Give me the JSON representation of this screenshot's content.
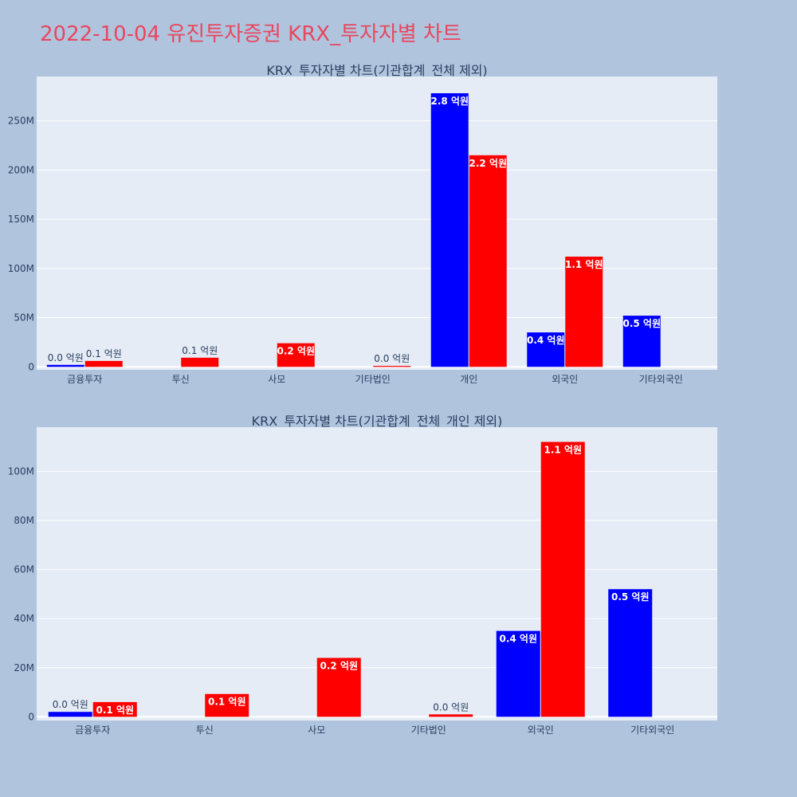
{
  "page": {
    "title": "2022-10-04 유진투자증권 KRX_투자자별 차트"
  },
  "colors": {
    "background": "#b0c4de",
    "plot_background": "#e5ecf6",
    "title": "#e8475f",
    "series_buy": "#0000ff",
    "series_sell": "#ff0000"
  },
  "chart_data": [
    {
      "type": "bar",
      "title": "KRX_투자자별 차트(기관합계_전체 제외)",
      "categories": [
        "금융투자",
        "투신",
        "사모",
        "기타법인",
        "개인",
        "외국인",
        "기타외국인"
      ],
      "series": [
        {
          "color": "#0000ff",
          "values": [
            2000000,
            0,
            0,
            0,
            278000000,
            35000000,
            52000000
          ],
          "labels": [
            "0.0 억원",
            "",
            "",
            "",
            "2.8 억원",
            "0.4 억원",
            "0.5 억원"
          ]
        },
        {
          "color": "#ff0000",
          "values": [
            6000000,
            9300000,
            24000000,
            1000000,
            215000000,
            112000000,
            0
          ],
          "labels": [
            "0.1 억원",
            "0.1 억원",
            "0.2 억원",
            "0.0 억원",
            "2.2 억원",
            "1.1 억원",
            ""
          ]
        }
      ],
      "yticks": [
        0,
        50000000,
        100000000,
        150000000,
        200000000,
        250000000
      ],
      "yticklabels": [
        "0",
        "50M",
        "100M",
        "150M",
        "200M",
        "250M"
      ],
      "ylim": [
        -3000000,
        295000000
      ],
      "grid": true,
      "legend": "none"
    },
    {
      "type": "bar",
      "title": "KRX_투자자별 차트(기관합계_전체_개인 제외)",
      "categories": [
        "금융투자",
        "투신",
        "사모",
        "기타법인",
        "외국인",
        "기타외국인"
      ],
      "series": [
        {
          "color": "#0000ff",
          "values": [
            2000000,
            0,
            0,
            0,
            35000000,
            52000000
          ],
          "labels": [
            "0.0 억원",
            "",
            "",
            "",
            "0.4 억원",
            "0.5 억원"
          ]
        },
        {
          "color": "#ff0000",
          "values": [
            6000000,
            9300000,
            24000000,
            1000000,
            112000000,
            0
          ],
          "labels": [
            "0.1 억원",
            "0.1 억원",
            "0.2 억원",
            "0.0 억원",
            "1.1 억원",
            ""
          ]
        }
      ],
      "yticks": [
        0,
        20000000,
        40000000,
        60000000,
        80000000,
        100000000
      ],
      "yticklabels": [
        "0",
        "20M",
        "40M",
        "60M",
        "80M",
        "100M"
      ],
      "ylim": [
        -1500000,
        118000000
      ],
      "grid": true,
      "legend": "none"
    }
  ]
}
